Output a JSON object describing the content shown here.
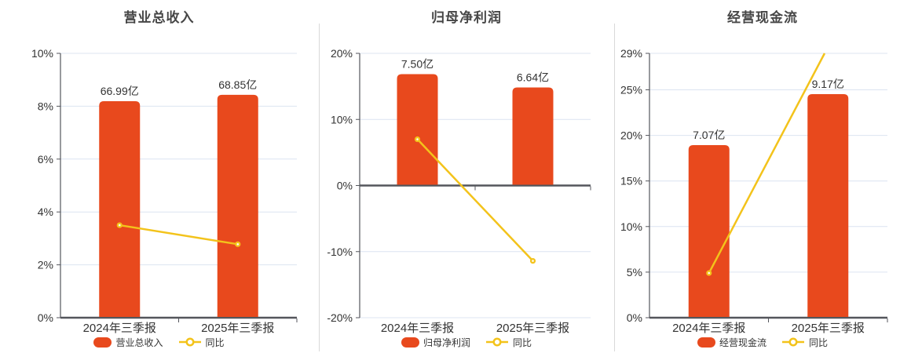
{
  "colors": {
    "bar": "#e8491d",
    "line": "#f3c31b",
    "grid": "#dce4f1",
    "axis": "#54565c",
    "text": "#333333",
    "title": "#464646"
  },
  "chart_data": [
    {
      "type": "bar+line",
      "title": "营业总收入",
      "categories": [
        "2024年三季报",
        "2025年三季报"
      ],
      "bar_series": {
        "name": "营业总收入",
        "value_labels": [
          "66.99亿",
          "68.85亿"
        ],
        "display_heights_axis_units": [
          8.19,
          8.43
        ]
      },
      "line_series": {
        "name": "同比",
        "values_pct": [
          3.5,
          2.78
        ]
      },
      "y_axis": {
        "min": 0,
        "max": 10,
        "zero_line": 0,
        "ticks": [
          10,
          8,
          6,
          4,
          2,
          0
        ],
        "tick_labels": [
          "10%",
          "8%",
          "6%",
          "4%",
          "2%",
          "0%"
        ]
      },
      "legend_position": "bottom",
      "grid_on": true
    },
    {
      "type": "bar+line",
      "title": "归母净利润",
      "categories": [
        "2024年三季报",
        "2025年三季报"
      ],
      "bar_series": {
        "name": "归母净利润",
        "value_labels": [
          "7.50亿",
          "6.64亿"
        ],
        "display_heights_axis_units": [
          16.85,
          14.84
        ]
      },
      "line_series": {
        "name": "同比",
        "values_pct": [
          7.0,
          -11.4
        ]
      },
      "y_axis": {
        "min": -20,
        "max": 20,
        "zero_line": 0,
        "ticks": [
          20,
          10,
          0,
          -10,
          -20
        ],
        "tick_labels": [
          "20%",
          "10%",
          "0%",
          "-10%",
          "-20%"
        ]
      },
      "legend_position": "bottom",
      "grid_on": true
    },
    {
      "type": "bar+line",
      "title": "经营现金流",
      "categories": [
        "2024年三季报",
        "2025年三季报"
      ],
      "bar_series": {
        "name": "经营现金流",
        "value_labels": [
          "7.07亿",
          "9.17亿"
        ],
        "display_heights_axis_units": [
          18.93,
          24.53
        ]
      },
      "line_series": {
        "name": "同比",
        "values_pct": [
          4.9,
          29.7
        ],
        "note": "second point exceeds axis max, line clipped at top"
      },
      "y_axis": {
        "min": 0,
        "max": 29,
        "zero_line": 0,
        "ticks": [
          29,
          25,
          20,
          15,
          10,
          5,
          0
        ],
        "tick_labels": [
          "29%",
          "25%",
          "20%",
          "15%",
          "10%",
          "5%",
          "0%"
        ]
      },
      "legend_position": "bottom",
      "grid_on": true
    }
  ]
}
